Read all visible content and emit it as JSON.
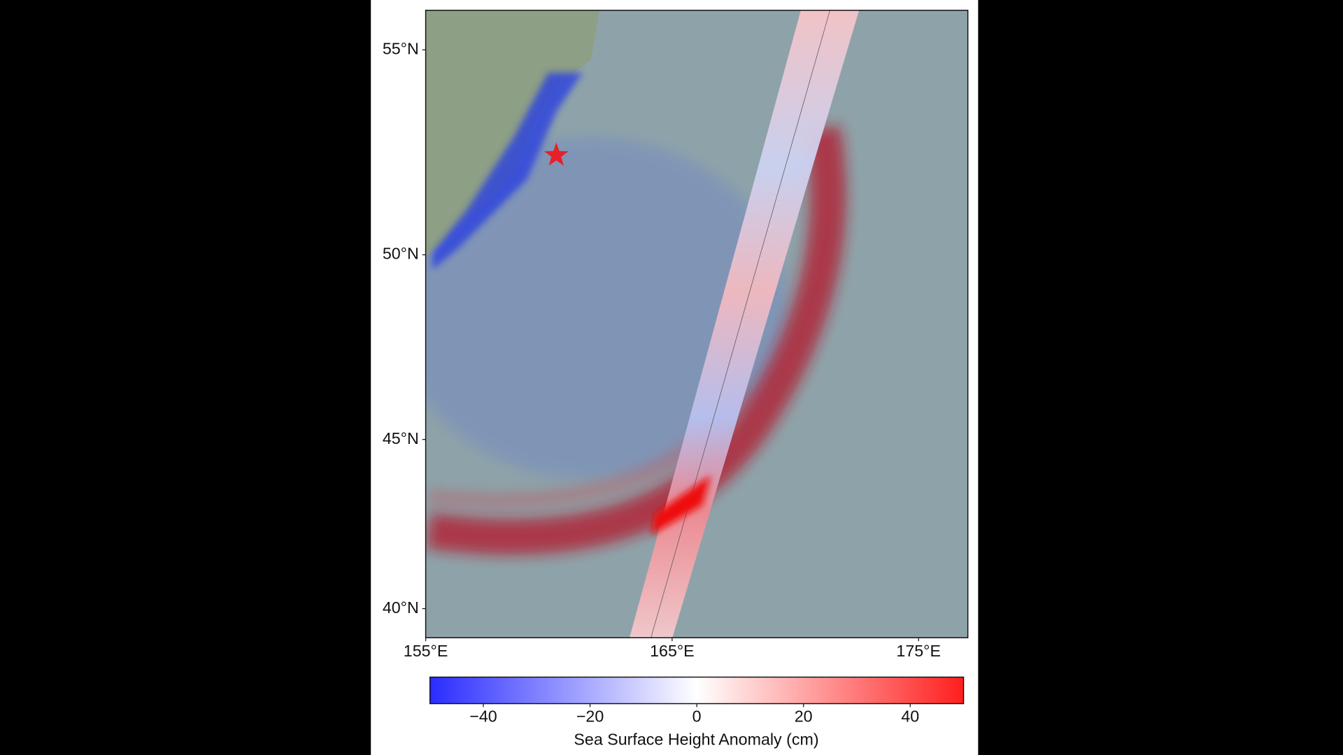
{
  "map": {
    "projection": "mercator",
    "lon_lim": [
      155,
      177.0
    ],
    "lat_lim": [
      39.1,
      55.9
    ],
    "lon_ticks": [
      {
        "value": 155,
        "label": "155°E"
      },
      {
        "value": 165,
        "label": "165°E"
      },
      {
        "value": 175,
        "label": "175°E"
      }
    ],
    "lat_ticks": [
      {
        "value": 55,
        "label": "55°N"
      },
      {
        "value": 50,
        "label": "50°N"
      },
      {
        "value": 45,
        "label": "45°N"
      },
      {
        "value": 40,
        "label": "40°N"
      }
    ],
    "epicenter": {
      "lon": 160.3,
      "lat": 52.5,
      "color": "#e8202a"
    }
  },
  "colorbar": {
    "label": "Sea Surface Height Anomaly (cm)",
    "range": [
      -50,
      50
    ],
    "colors": [
      "#2a2cff",
      "#ffffff",
      "#ff1f1f"
    ],
    "ticks": [
      {
        "value": -40,
        "label": "−40"
      },
      {
        "value": -20,
        "label": "−20"
      },
      {
        "value": 0,
        "label": "0"
      },
      {
        "value": 20,
        "label": "20"
      },
      {
        "value": 40,
        "label": "40"
      }
    ]
  }
}
